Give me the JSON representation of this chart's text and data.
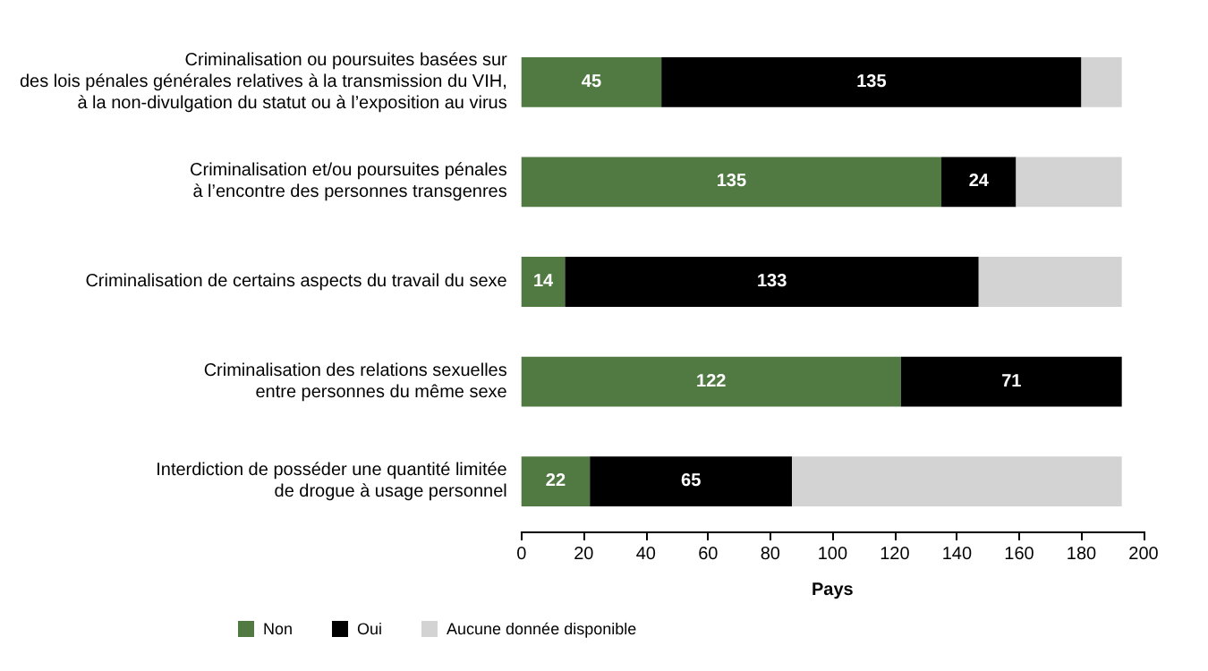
{
  "chart_data": {
    "type": "bar",
    "orientation": "horizontal",
    "stacked": true,
    "xlabel": "Pays",
    "categories": [
      "Criminalisation ou poursuites basées sur\ndes lois pénales générales relatives à la transmission du VIH,\nà la non-divulgation du statut ou à l’exposition au virus",
      "Criminalisation et/ou poursuites pénales\nà l’encontre des personnes transgenres",
      "Criminalisation de certains aspects du travail du sexe",
      "Criminalisation des relations sexuelles\nentre personnes du même sexe",
      "Interdiction de posséder une quantité limitée\nde drogue à usage personnel"
    ],
    "series": [
      {
        "name": "Non",
        "color": "#507a42",
        "values": [
          45,
          135,
          14,
          122,
          22
        ],
        "value_labels": [
          "45",
          "135",
          "14",
          "122",
          "22"
        ]
      },
      {
        "name": "Oui",
        "color": "#000000",
        "values": [
          135,
          24,
          133,
          71,
          65
        ],
        "value_labels": [
          "135",
          "24",
          "133",
          "71",
          "65"
        ]
      },
      {
        "name": "Aucune donnée disponible",
        "color": "#d3d3d3",
        "values": [
          13,
          34,
          46,
          0,
          106
        ],
        "value_labels": [
          null,
          null,
          null,
          null,
          null
        ]
      }
    ],
    "xlim": [
      0,
      200
    ],
    "xticks": [
      0,
      20,
      40,
      60,
      80,
      100,
      120,
      140,
      160,
      180,
      200
    ],
    "grid": false,
    "legend": "bottom left"
  }
}
